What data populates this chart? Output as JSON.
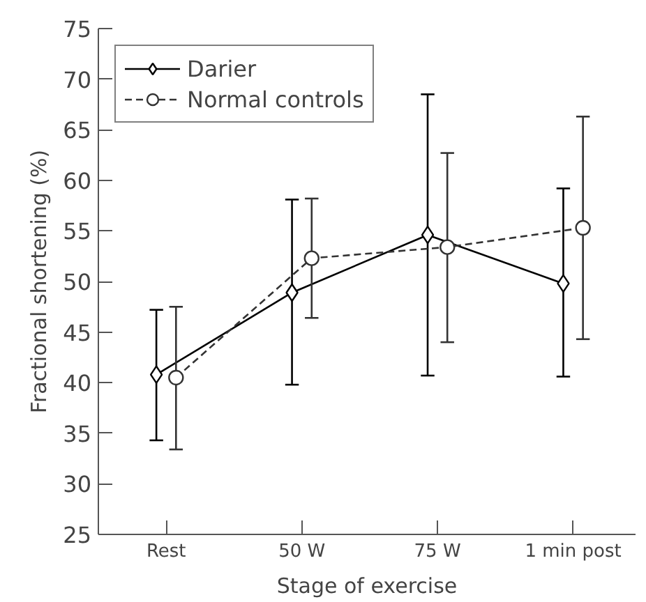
{
  "chart_data": {
    "type": "line",
    "xlabel": "Stage of exercise",
    "ylabel": "Fractional shortening (%)",
    "categories": [
      "Rest",
      "50 W",
      "75 W",
      "1 min post"
    ],
    "ylim": [
      25,
      75
    ],
    "yticks": [
      25,
      30,
      35,
      40,
      45,
      50,
      55,
      60,
      65,
      70,
      75
    ],
    "grid": false,
    "legend": "top left",
    "series": [
      {
        "name": "Darier",
        "color": "#000000",
        "marker": "diamond",
        "line_style": "solid",
        "values": [
          40.8,
          48.9,
          54.6,
          49.8
        ],
        "errors": [
          [
            34.3,
            47.2
          ],
          [
            39.8,
            58.1
          ],
          [
            40.7,
            68.5
          ],
          [
            40.6,
            59.2
          ]
        ]
      },
      {
        "name": "Normal controls",
        "color": "#333333",
        "marker": "circle",
        "line_style": "dashed",
        "values": [
          40.5,
          52.3,
          53.4,
          55.3
        ],
        "errors": [
          [
            33.4,
            47.5
          ],
          [
            46.4,
            58.2
          ],
          [
            44.0,
            62.7
          ],
          [
            44.3,
            66.3
          ]
        ]
      }
    ]
  }
}
